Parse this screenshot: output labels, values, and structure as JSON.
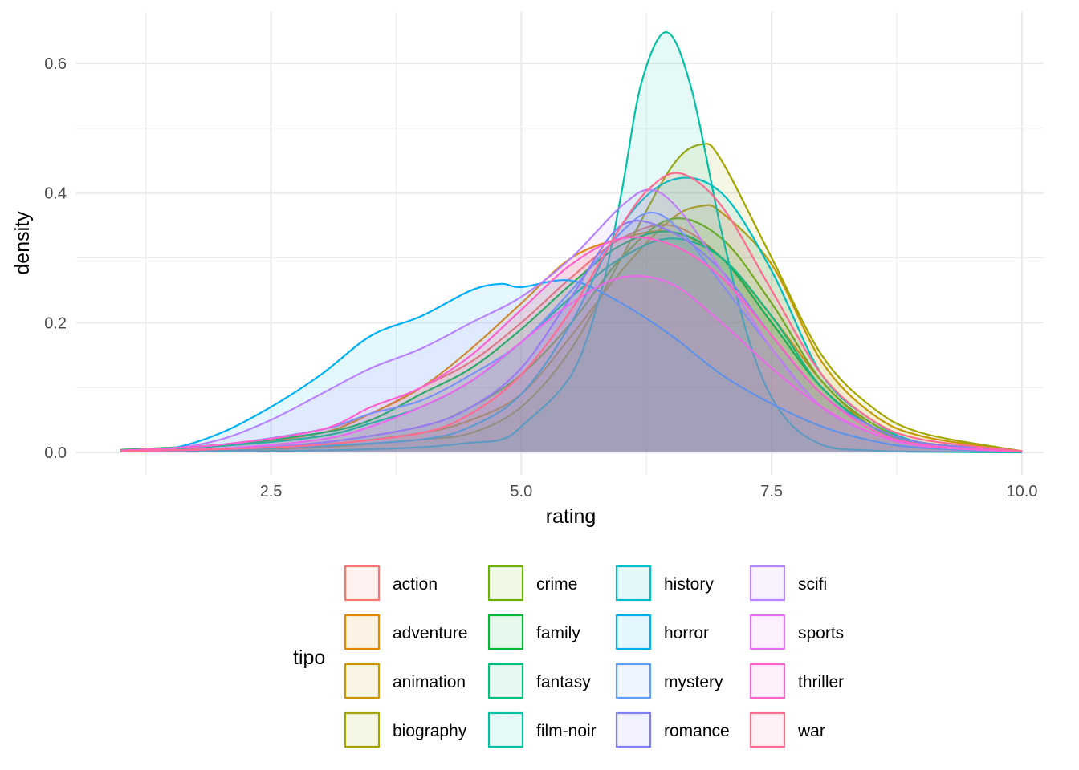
{
  "chart_data": {
    "type": "area",
    "subtype": "density",
    "title": "",
    "xlabel": "rating",
    "ylabel": "density",
    "xlim": [
      1,
      10
    ],
    "ylim": [
      0,
      0.65
    ],
    "x_ticks": [
      {
        "value": 2.5,
        "label": "2.5"
      },
      {
        "value": 5.0,
        "label": "5.0"
      },
      {
        "value": 7.5,
        "label": "7.5"
      },
      {
        "value": 10.0,
        "label": "10.0"
      }
    ],
    "y_ticks": [
      {
        "value": 0.0,
        "label": "0.0"
      },
      {
        "value": 0.2,
        "label": "0.2"
      },
      {
        "value": 0.4,
        "label": "0.4"
      },
      {
        "value": 0.6,
        "label": "0.6"
      }
    ],
    "grid": true,
    "legend": {
      "title": "tipo",
      "position": "bottom",
      "columns": 4
    },
    "fill_opacity": 0.1,
    "series": [
      {
        "name": "action",
        "color": "#F8766D",
        "x": [
          1,
          2,
          3,
          3.5,
          4,
          4.5,
          5,
          5.5,
          6,
          6.5,
          7,
          7.5,
          8,
          8.5,
          9,
          10
        ],
        "y": [
          0.003,
          0.012,
          0.035,
          0.06,
          0.1,
          0.14,
          0.2,
          0.27,
          0.33,
          0.35,
          0.3,
          0.2,
          0.1,
          0.04,
          0.015,
          0.002
        ]
      },
      {
        "name": "adventure",
        "color": "#E58700",
        "x": [
          1,
          2,
          3,
          3.5,
          4,
          4.5,
          5,
          5.5,
          6,
          6.5,
          7,
          7.5,
          8,
          8.5,
          9,
          10
        ],
        "y": [
          0.003,
          0.01,
          0.03,
          0.06,
          0.1,
          0.16,
          0.23,
          0.3,
          0.33,
          0.34,
          0.3,
          0.21,
          0.11,
          0.04,
          0.015,
          0.002
        ]
      },
      {
        "name": "animation",
        "color": "#C99800",
        "x": [
          1,
          2,
          3,
          4,
          4.5,
          5,
          5.5,
          6,
          6.5,
          6.8,
          7,
          7.5,
          8,
          8.5,
          9,
          10
        ],
        "y": [
          0.004,
          0.006,
          0.012,
          0.03,
          0.05,
          0.09,
          0.18,
          0.28,
          0.36,
          0.38,
          0.37,
          0.29,
          0.14,
          0.06,
          0.025,
          0.002
        ]
      },
      {
        "name": "biography",
        "color": "#A3A500",
        "x": [
          1,
          2,
          3,
          4,
          4.5,
          5,
          5.5,
          6,
          6.5,
          6.8,
          7,
          7.5,
          8,
          8.5,
          9,
          10
        ],
        "y": [
          0.002,
          0.004,
          0.008,
          0.02,
          0.03,
          0.07,
          0.16,
          0.3,
          0.44,
          0.475,
          0.45,
          0.3,
          0.15,
          0.07,
          0.03,
          0.002
        ]
      },
      {
        "name": "crime",
        "color": "#6BB100",
        "x": [
          1,
          2,
          3,
          4,
          4.5,
          5,
          5.5,
          6,
          6.5,
          7,
          7.5,
          8,
          8.5,
          9,
          10
        ],
        "y": [
          0.002,
          0.005,
          0.015,
          0.04,
          0.07,
          0.12,
          0.2,
          0.3,
          0.36,
          0.33,
          0.23,
          0.11,
          0.045,
          0.015,
          0.002
        ]
      },
      {
        "name": "family",
        "color": "#00BA38",
        "x": [
          1,
          2,
          3,
          3.5,
          4,
          4.5,
          5,
          5.5,
          6,
          6.5,
          7,
          7.5,
          8,
          8.5,
          9,
          10
        ],
        "y": [
          0.004,
          0.012,
          0.03,
          0.05,
          0.09,
          0.13,
          0.19,
          0.26,
          0.32,
          0.34,
          0.3,
          0.2,
          0.1,
          0.04,
          0.015,
          0.002
        ]
      },
      {
        "name": "fantasy",
        "color": "#00BF7D",
        "x": [
          1,
          2,
          3,
          3.5,
          4,
          4.5,
          5,
          5.5,
          6,
          6.5,
          7,
          7.5,
          8,
          8.5,
          9,
          10
        ],
        "y": [
          0.003,
          0.01,
          0.025,
          0.045,
          0.07,
          0.11,
          0.17,
          0.24,
          0.3,
          0.33,
          0.3,
          0.21,
          0.1,
          0.04,
          0.015,
          0.002
        ]
      },
      {
        "name": "film-noir",
        "color": "#00C1A3",
        "x": [
          1,
          2,
          3,
          3.5,
          4,
          4.5,
          4.8,
          5,
          5.5,
          5.8,
          6,
          6.2,
          6.45,
          6.7,
          7,
          7.3,
          7.6,
          8,
          8.5,
          9,
          10
        ],
        "y": [
          0.002,
          0.002,
          0.003,
          0.005,
          0.008,
          0.015,
          0.02,
          0.04,
          0.12,
          0.25,
          0.4,
          0.57,
          0.648,
          0.56,
          0.34,
          0.16,
          0.06,
          0.012,
          0.003,
          0.001,
          0
        ]
      },
      {
        "name": "history",
        "color": "#00BFC4",
        "x": [
          1,
          2,
          3,
          4,
          4.5,
          5,
          5.5,
          6,
          6.5,
          7,
          7.5,
          8,
          8.5,
          9,
          10
        ],
        "y": [
          0.002,
          0.004,
          0.01,
          0.02,
          0.04,
          0.09,
          0.2,
          0.35,
          0.42,
          0.4,
          0.28,
          0.12,
          0.05,
          0.015,
          0.002
        ]
      },
      {
        "name": "horror",
        "color": "#00B0F6",
        "x": [
          1,
          1.5,
          2,
          2.5,
          3,
          3.5,
          4,
          4.5,
          4.8,
          5,
          5.5,
          6,
          6.5,
          7,
          7.5,
          8,
          8.5,
          9,
          10
        ],
        "y": [
          0.003,
          0.006,
          0.03,
          0.07,
          0.12,
          0.18,
          0.21,
          0.25,
          0.26,
          0.255,
          0.265,
          0.23,
          0.18,
          0.12,
          0.075,
          0.04,
          0.018,
          0.007,
          0.001
        ]
      },
      {
        "name": "mystery",
        "color": "#619CFF",
        "x": [
          1,
          2,
          3,
          3.5,
          4,
          4.5,
          5,
          5.5,
          6,
          6.3,
          6.6,
          7,
          7.5,
          8,
          8.5,
          9,
          10
        ],
        "y": [
          0.003,
          0.012,
          0.035,
          0.06,
          0.08,
          0.12,
          0.17,
          0.25,
          0.34,
          0.37,
          0.34,
          0.26,
          0.16,
          0.07,
          0.03,
          0.01,
          0.001
        ]
      },
      {
        "name": "romance",
        "color": "#7F80F8",
        "x": [
          1,
          2,
          3,
          4,
          4.5,
          5,
          5.5,
          6,
          6.5,
          7,
          7.5,
          8,
          8.5,
          9,
          10
        ],
        "y": [
          0.002,
          0.005,
          0.015,
          0.04,
          0.07,
          0.13,
          0.24,
          0.35,
          0.34,
          0.28,
          0.18,
          0.09,
          0.04,
          0.015,
          0.002
        ]
      },
      {
        "name": "scifi",
        "color": "#B983FF",
        "x": [
          1,
          1.5,
          2,
          2.5,
          3,
          3.5,
          4,
          4.5,
          5,
          5.5,
          6,
          6.3,
          6.6,
          7,
          7.5,
          8,
          8.5,
          9,
          10
        ],
        "y": [
          0.003,
          0.006,
          0.02,
          0.05,
          0.09,
          0.13,
          0.16,
          0.2,
          0.24,
          0.3,
          0.38,
          0.405,
          0.37,
          0.28,
          0.16,
          0.07,
          0.03,
          0.01,
          0.001
        ]
      },
      {
        "name": "sports",
        "color": "#E76BF3",
        "x": [
          1,
          2,
          3,
          3.5,
          4,
          4.5,
          5,
          5.5,
          6,
          6.5,
          7,
          7.5,
          8,
          8.5,
          9,
          10
        ],
        "y": [
          0.002,
          0.006,
          0.02,
          0.04,
          0.07,
          0.11,
          0.17,
          0.23,
          0.27,
          0.26,
          0.2,
          0.13,
          0.07,
          0.03,
          0.01,
          0.001
        ]
      },
      {
        "name": "thriller",
        "color": "#FD61D1",
        "x": [
          1,
          2,
          3,
          3.5,
          4,
          4.5,
          5,
          5.5,
          6,
          6.5,
          7,
          7.5,
          8,
          8.5,
          9,
          10
        ],
        "y": [
          0.003,
          0.012,
          0.035,
          0.07,
          0.1,
          0.15,
          0.22,
          0.29,
          0.33,
          0.32,
          0.27,
          0.18,
          0.09,
          0.035,
          0.012,
          0.001
        ]
      },
      {
        "name": "war",
        "color": "#FF6C91",
        "x": [
          1,
          2,
          3,
          4,
          4.5,
          5,
          5.5,
          6,
          6.3,
          6.6,
          7,
          7.5,
          8,
          8.5,
          9,
          10
        ],
        "y": [
          0.002,
          0.005,
          0.012,
          0.03,
          0.06,
          0.12,
          0.22,
          0.35,
          0.41,
          0.43,
          0.38,
          0.25,
          0.12,
          0.05,
          0.02,
          0.002
        ]
      }
    ]
  }
}
